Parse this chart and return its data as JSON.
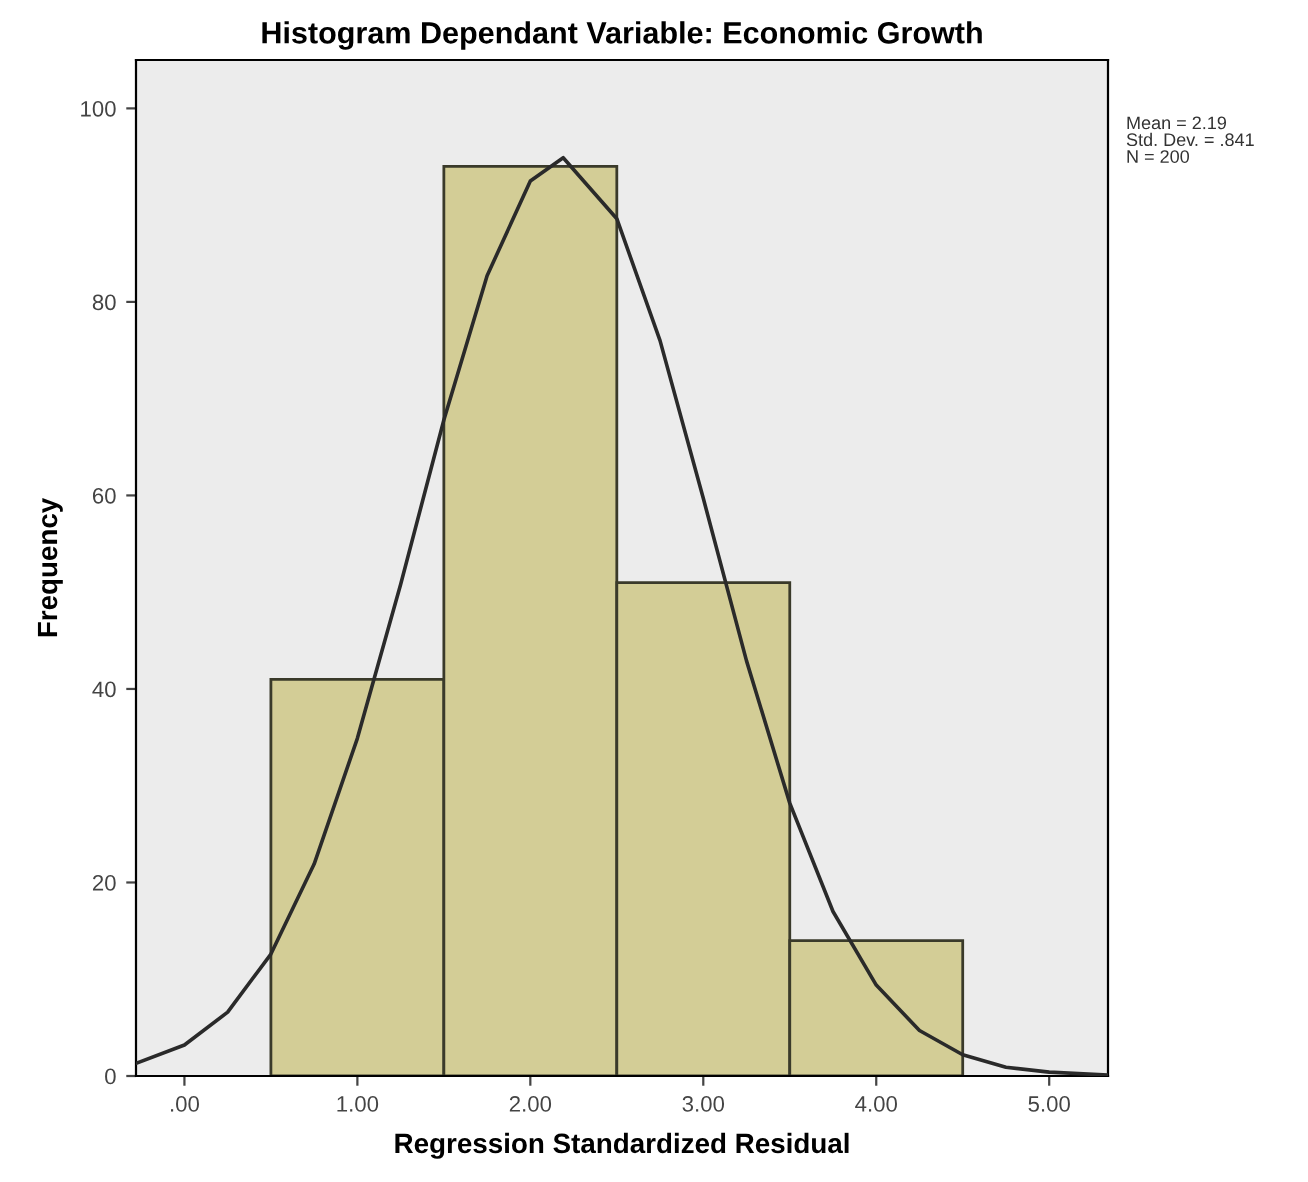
{
  "chart_data": {
    "type": "histogram",
    "title": "Histogram Dependant Variable: Economic Growth",
    "xlabel": "Regression Standardized Residual",
    "ylabel": "Frequency",
    "bins": [
      0.5,
      1.5,
      2.5,
      3.5,
      4.5
    ],
    "values": [
      41,
      94,
      51,
      14
    ],
    "color": "#d3cd96",
    "series": [
      {
        "type": "line",
        "color": "#2a2a2a",
        "x": [
          -0.28,
          0,
          0.25,
          0.5,
          0.75,
          1.0,
          1.25,
          1.5,
          1.75,
          2.0,
          2.19,
          2.5,
          2.75,
          3.0,
          3.25,
          3.5,
          3.75,
          4.0,
          4.25,
          4.5,
          4.75,
          5.0,
          5.34
        ],
        "values": [
          1.3,
          3.2,
          6.6,
          12.6,
          21.9,
          34.9,
          50.8,
          67.8,
          82.7,
          92.5,
          94.9,
          88.6,
          76.0,
          59.7,
          42.9,
          28.2,
          17.0,
          9.4,
          4.7,
          2.2,
          0.9,
          0.4,
          0.1
        ]
      }
    ],
    "xlim": [
      -0.28,
      5.34
    ],
    "ylim": [
      0,
      105
    ],
    "xticks": [
      {
        "value": 0,
        "label": ".00"
      },
      {
        "value": 1,
        "label": "1.00"
      },
      {
        "value": 2,
        "label": "2.00"
      },
      {
        "value": 3,
        "label": "3.00"
      },
      {
        "value": 4,
        "label": "4.00"
      },
      {
        "value": 5,
        "label": "5.00"
      }
    ],
    "yticks": [
      0,
      20,
      40,
      60,
      80,
      100
    ],
    "annotations": [
      "Mean = 2.19\nStd. Dev. = .841\nN = 200"
    ],
    "grid": false,
    "legend": false
  }
}
